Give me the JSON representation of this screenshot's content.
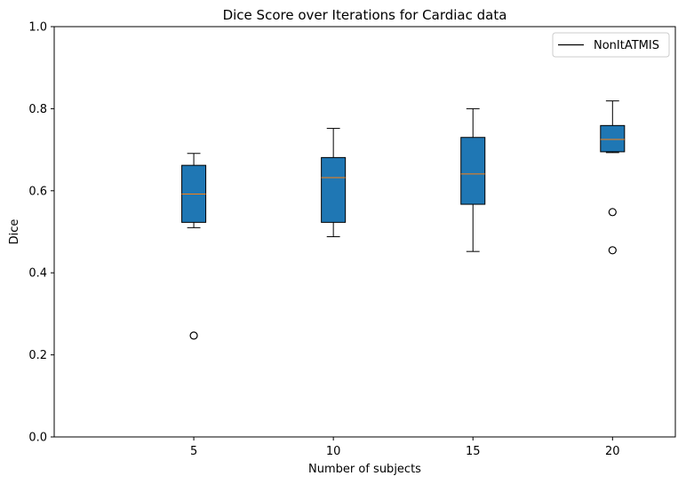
{
  "chart_data": {
    "type": "box",
    "title": "Dice Score over Iterations for Cardiac data",
    "xlabel": "Number of subjects",
    "ylabel": "Dice",
    "ylim": [
      0.0,
      1.0
    ],
    "yticks": [
      "0.0",
      "0.2",
      "0.4",
      "0.6",
      "0.8",
      "1.0"
    ],
    "xticks": [
      "5",
      "10",
      "15",
      "20"
    ],
    "grid": false,
    "legend": {
      "position": "top-right",
      "entries": [
        "NonItATMIS"
      ]
    },
    "box_color": "#1f77b4",
    "median_color": "#ff7f0e",
    "boxes": [
      {
        "x": 5,
        "whisker_low": 0.51,
        "q1": 0.523,
        "median": 0.592,
        "q3": 0.662,
        "whisker_high": 0.691,
        "outliers": [
          0.247
        ]
      },
      {
        "x": 10,
        "whisker_low": 0.488,
        "q1": 0.523,
        "median": 0.632,
        "q3": 0.681,
        "whisker_high": 0.752,
        "outliers": []
      },
      {
        "x": 15,
        "whisker_low": 0.452,
        "q1": 0.567,
        "median": 0.641,
        "q3": 0.73,
        "whisker_high": 0.8,
        "outliers": []
      },
      {
        "x": 20,
        "whisker_low": 0.693,
        "q1": 0.695,
        "median": 0.725,
        "q3": 0.759,
        "whisker_high": 0.819,
        "outliers": [
          0.548,
          0.455
        ]
      }
    ]
  }
}
